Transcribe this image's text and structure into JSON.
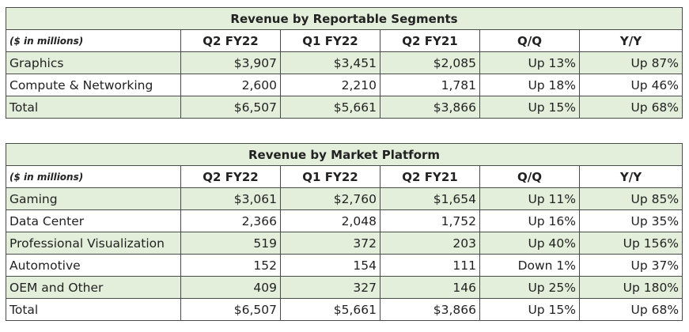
{
  "tables": [
    {
      "title": "Revenue by Reportable Segments",
      "unit_label": "($ in millions)",
      "columns": [
        "Q2 FY22",
        "Q1 FY22",
        "Q2 FY21",
        "Q/Q",
        "Y/Y"
      ],
      "rows": [
        {
          "label": "Graphics",
          "cells": [
            "$3,907",
            "$3,451",
            "$2,085",
            "Up 13%",
            "Up 87%"
          ]
        },
        {
          "label": "Compute & Networking",
          "cells": [
            "2,600",
            "2,210",
            "1,781",
            "Up 18%",
            "Up 46%"
          ]
        },
        {
          "label": "Total",
          "cells": [
            "$6,507",
            "$5,661",
            "$3,866",
            "Up 15%",
            "Up 68%"
          ]
        }
      ]
    },
    {
      "title": "Revenue by Market Platform",
      "unit_label": "($ in millions)",
      "columns": [
        "Q2 FY22",
        "Q1 FY22",
        "Q2 FY21",
        "Q/Q",
        "Y/Y"
      ],
      "rows": [
        {
          "label": "Gaming",
          "cells": [
            "$3,061",
            "$2,760",
            "$1,654",
            "Up 11%",
            "Up 85%"
          ]
        },
        {
          "label": "Data Center",
          "cells": [
            "2,366",
            "2,048",
            "1,752",
            "Up 16%",
            "Up 35%"
          ]
        },
        {
          "label": "Professional Visualization",
          "cells": [
            "519",
            "372",
            "203",
            "Up 40%",
            "Up 156%"
          ]
        },
        {
          "label": "Automotive",
          "cells": [
            "152",
            "154",
            "111",
            "Down 1%",
            "Up 37%"
          ]
        },
        {
          "label": "OEM and Other",
          "cells": [
            "409",
            "327",
            "146",
            "Up 25%",
            "Up 180%"
          ]
        },
        {
          "label": "Total",
          "cells": [
            "$6,507",
            "$5,661",
            "$3,866",
            "Up 15%",
            "Up 68%"
          ]
        }
      ]
    }
  ],
  "colors": {
    "shaded_row": "#e3eedb",
    "border": "#4a4a4a"
  }
}
